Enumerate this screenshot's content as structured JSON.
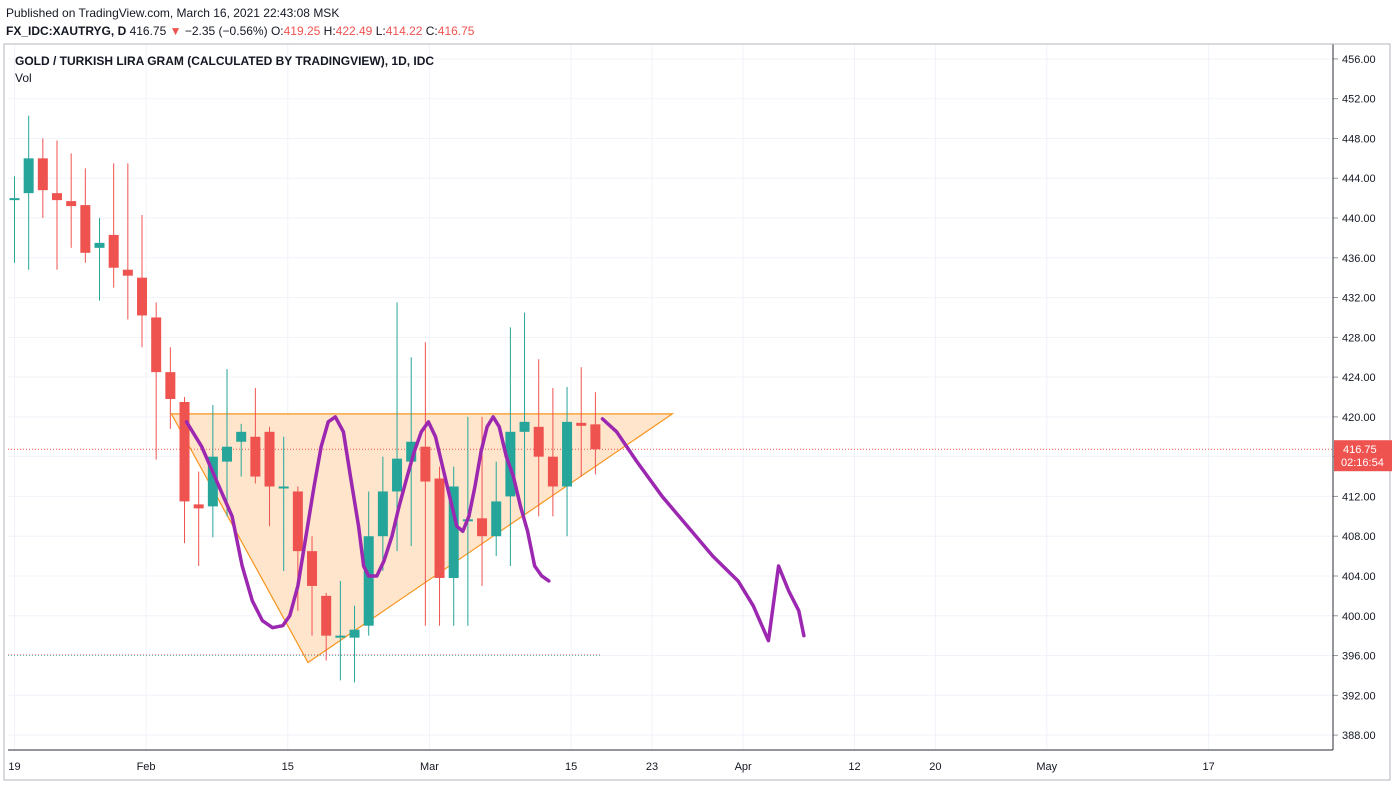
{
  "header": {
    "published": "Published on TradingView.com, March 16, 2021 22:43:08 MSK",
    "symbol": "FX_IDC:XAUTRYG, D",
    "last": "416.75",
    "change_arrow": "▼",
    "change": "−2.35 (−0.56%)",
    "o_label": "O:",
    "o": "419.25",
    "h_label": "H:",
    "h": "422.49",
    "l_label": "L:",
    "l": "414.22",
    "c_label": "C:",
    "c": "416.75"
  },
  "legend": {
    "title": "GOLD / TURKISH LIRA GRAM (CALCULATED BY TRADINGVIEW), 1D, IDC",
    "vol": "Vol"
  },
  "price_badge": {
    "price": "416.75",
    "countdown": "02:16:54"
  },
  "colors": {
    "up": "#26a69a",
    "down": "#ef5350",
    "grid": "#f0f3fa",
    "triangle_fill": "#ffe0c2",
    "triangle_stroke": "#f7941d",
    "projection": "#9c27b0",
    "price_line": "#ef5350"
  },
  "chart_data": {
    "type": "candlestick",
    "ylim": [
      386.5,
      457.5
    ],
    "y_ticks": [
      "456.00",
      "452.00",
      "448.00",
      "444.00",
      "440.00",
      "436.00",
      "432.00",
      "428.00",
      "424.00",
      "420.00",
      "416.00",
      "412.00",
      "408.00",
      "404.00",
      "400.00",
      "396.00",
      "392.00",
      "388.00"
    ],
    "x_labels": [
      {
        "label": "19",
        "day": 0
      },
      {
        "label": "Feb",
        "day": 13
      },
      {
        "label": "15",
        "day": 27
      },
      {
        "label": "Mar",
        "day": 41
      },
      {
        "label": "15",
        "day": 55
      },
      {
        "label": "23",
        "day": 63
      },
      {
        "label": "Apr",
        "day": 72
      },
      {
        "label": "12",
        "day": 83
      },
      {
        "label": "20",
        "day": 91
      },
      {
        "label": "May",
        "day": 102
      },
      {
        "label": "17",
        "day": 118
      }
    ],
    "candles": [
      {
        "day": 0,
        "o": 441.8,
        "h": 444.2,
        "l": 435.5,
        "c": 442.0
      },
      {
        "day": 1.4,
        "o": 442.5,
        "h": 450.3,
        "l": 434.8,
        "c": 446.0
      },
      {
        "day": 2.8,
        "o": 446.0,
        "h": 448.0,
        "l": 440.0,
        "c": 442.8
      },
      {
        "day": 4.2,
        "o": 442.5,
        "h": 447.8,
        "l": 434.8,
        "c": 441.8
      },
      {
        "day": 5.6,
        "o": 441.7,
        "h": 446.5,
        "l": 437.0,
        "c": 441.2
      },
      {
        "day": 7.0,
        "o": 441.3,
        "h": 445.0,
        "l": 435.5,
        "c": 436.5
      },
      {
        "day": 8.4,
        "o": 437.0,
        "h": 440.0,
        "l": 431.7,
        "c": 437.5
      },
      {
        "day": 9.8,
        "o": 438.3,
        "h": 445.5,
        "l": 433.0,
        "c": 435.0
      },
      {
        "day": 11.2,
        "o": 434.8,
        "h": 445.5,
        "l": 429.8,
        "c": 434.2
      },
      {
        "day": 12.6,
        "o": 434.0,
        "h": 440.3,
        "l": 427.0,
        "c": 430.2
      },
      {
        "day": 14.0,
        "o": 430.0,
        "h": 431.5,
        "l": 415.7,
        "c": 424.5
      },
      {
        "day": 15.4,
        "o": 424.5,
        "h": 427.0,
        "l": 418.8,
        "c": 421.8
      },
      {
        "day": 16.8,
        "o": 421.5,
        "h": 422.0,
        "l": 407.3,
        "c": 411.5
      },
      {
        "day": 18.2,
        "o": 411.2,
        "h": 414.5,
        "l": 405.0,
        "c": 410.8
      },
      {
        "day": 19.6,
        "o": 411.0,
        "h": 421.2,
        "l": 407.9,
        "c": 416.0
      },
      {
        "day": 21.0,
        "o": 415.5,
        "h": 424.8,
        "l": 410.0,
        "c": 417.0
      },
      {
        "day": 22.4,
        "o": 417.5,
        "h": 419.3,
        "l": 414.0,
        "c": 418.5
      },
      {
        "day": 23.8,
        "o": 418.0,
        "h": 422.9,
        "l": 413.3,
        "c": 414.0
      },
      {
        "day": 25.2,
        "o": 418.5,
        "h": 419.0,
        "l": 409.0,
        "c": 413.0
      },
      {
        "day": 26.6,
        "o": 413.0,
        "h": 418.0,
        "l": 404.5,
        "c": 413.0
      },
      {
        "day": 28.0,
        "o": 412.5,
        "h": 413.0,
        "l": 400.5,
        "c": 406.5
      },
      {
        "day": 29.4,
        "o": 406.5,
        "h": 408.0,
        "l": 398.0,
        "c": 403.0
      },
      {
        "day": 30.8,
        "o": 402.0,
        "h": 402.3,
        "l": 395.5,
        "c": 398.0
      },
      {
        "day": 32.2,
        "o": 398.0,
        "h": 403.5,
        "l": 393.5,
        "c": 398.0
      },
      {
        "day": 33.6,
        "o": 397.8,
        "h": 401.0,
        "l": 393.3,
        "c": 398.6
      },
      {
        "day": 35.0,
        "o": 399.0,
        "h": 412.5,
        "l": 398.0,
        "c": 408.0
      },
      {
        "day": 36.4,
        "o": 408.0,
        "h": 416.0,
        "l": 404.5,
        "c": 412.5
      },
      {
        "day": 37.8,
        "o": 412.5,
        "h": 431.5,
        "l": 406.5,
        "c": 415.8
      },
      {
        "day": 39.2,
        "o": 415.5,
        "h": 426.0,
        "l": 407.0,
        "c": 417.5
      },
      {
        "day": 40.6,
        "o": 417.0,
        "h": 427.5,
        "l": 399.0,
        "c": 413.5
      },
      {
        "day": 42.0,
        "o": 413.8,
        "h": 415.0,
        "l": 399.0,
        "c": 403.8
      },
      {
        "day": 43.4,
        "o": 403.8,
        "h": 415.0,
        "l": 399.0,
        "c": 413.0
      },
      {
        "day": 44.8,
        "o": 409.7,
        "h": 420.0,
        "l": 399.0,
        "c": 409.7
      },
      {
        "day": 46.2,
        "o": 409.8,
        "h": 420.0,
        "l": 403.0,
        "c": 408.0
      },
      {
        "day": 47.6,
        "o": 408.0,
        "h": 415.5,
        "l": 406.0,
        "c": 411.5
      },
      {
        "day": 49.0,
        "o": 412.0,
        "h": 429.0,
        "l": 405.0,
        "c": 418.5
      },
      {
        "day": 50.4,
        "o": 418.5,
        "h": 430.5,
        "l": 409.0,
        "c": 419.5
      },
      {
        "day": 51.8,
        "o": 419.0,
        "h": 425.8,
        "l": 410.0,
        "c": 416.0
      },
      {
        "day": 53.2,
        "o": 416.0,
        "h": 422.9,
        "l": 410.0,
        "c": 413.0
      },
      {
        "day": 54.6,
        "o": 413.0,
        "h": 423.0,
        "l": 408.0,
        "c": 419.5
      },
      {
        "day": 56.0,
        "o": 419.4,
        "h": 425.0,
        "l": 414.0,
        "c": 419.1
      },
      {
        "day": 57.4,
        "o": 419.25,
        "h": 422.49,
        "l": 414.22,
        "c": 416.75
      }
    ],
    "support_line": 396.1,
    "triangle": [
      {
        "day": 15.5,
        "price": 420.3
      },
      {
        "day": 65.0,
        "price": 420.3
      },
      {
        "day": 29.0,
        "price": 395.3
      }
    ],
    "projection_path": [
      {
        "day": 17.0,
        "price": 419.5
      },
      {
        "day": 18.5,
        "price": 417.0
      },
      {
        "day": 20.0,
        "price": 413.5
      },
      {
        "day": 21.5,
        "price": 410.0
      },
      {
        "day": 22.5,
        "price": 405.0
      },
      {
        "day": 23.5,
        "price": 401.5
      },
      {
        "day": 24.5,
        "price": 399.5
      },
      {
        "day": 25.5,
        "price": 398.8
      },
      {
        "day": 26.5,
        "price": 399.0
      },
      {
        "day": 27.2,
        "price": 400.0
      },
      {
        "day": 28.0,
        "price": 403.0
      },
      {
        "day": 28.8,
        "price": 408.0
      },
      {
        "day": 29.6,
        "price": 413.0
      },
      {
        "day": 30.3,
        "price": 417.0
      },
      {
        "day": 31.0,
        "price": 419.5
      },
      {
        "day": 31.7,
        "price": 420.0
      },
      {
        "day": 32.5,
        "price": 418.5
      },
      {
        "day": 33.2,
        "price": 414.0
      },
      {
        "day": 34.0,
        "price": 409.0
      },
      {
        "day": 34.5,
        "price": 405.0
      },
      {
        "day": 35.0,
        "price": 404.0
      },
      {
        "day": 35.8,
        "price": 404.0
      },
      {
        "day": 36.5,
        "price": 405.5
      },
      {
        "day": 37.3,
        "price": 408.0
      },
      {
        "day": 38.0,
        "price": 411.0
      },
      {
        "day": 38.8,
        "price": 414.0
      },
      {
        "day": 39.5,
        "price": 416.5
      },
      {
        "day": 40.2,
        "price": 418.5
      },
      {
        "day": 40.9,
        "price": 419.5
      },
      {
        "day": 41.6,
        "price": 418.0
      },
      {
        "day": 42.3,
        "price": 415.0
      },
      {
        "day": 43.0,
        "price": 412.0
      },
      {
        "day": 43.7,
        "price": 409.0
      },
      {
        "day": 44.3,
        "price": 408.5
      },
      {
        "day": 44.9,
        "price": 410.0
      },
      {
        "day": 45.5,
        "price": 413.0
      },
      {
        "day": 46.1,
        "price": 416.5
      },
      {
        "day": 46.7,
        "price": 419.0
      },
      {
        "day": 47.3,
        "price": 420.0
      },
      {
        "day": 47.9,
        "price": 419.0
      },
      {
        "day": 48.6,
        "price": 416.0
      },
      {
        "day": 49.3,
        "price": 414.0
      },
      {
        "day": 50.0,
        "price": 411.0
      },
      {
        "day": 50.7,
        "price": 408.5
      },
      {
        "day": 51.4,
        "price": 405.0
      },
      {
        "day": 52.1,
        "price": 404.0
      },
      {
        "day": 52.8,
        "price": 403.5
      }
    ]
  }
}
